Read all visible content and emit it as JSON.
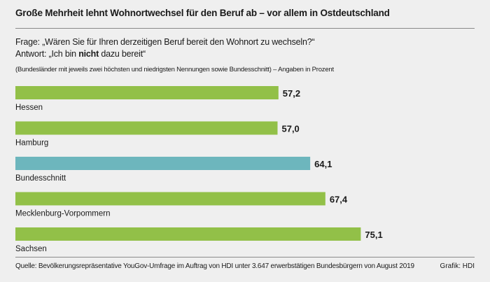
{
  "header": {
    "title": "Große Mehrheit lehnt Wohnortwechsel für den Beruf ab – vor allem in Ostdeutschland",
    "question": "Frage: „Wären Sie für Ihren derzeitigen Beruf bereit den Wohnort zu wechseln?“",
    "answer_prefix": "Antwort: „Ich bin ",
    "answer_emph": "nicht",
    "answer_suffix": " dazu bereit“",
    "note": "(Bundesländer mit jeweils zwei höchsten und niedrigsten Nennungen sowie Bundesschnitt) – Angaben in Prozent"
  },
  "footer": {
    "source": "Quelle: Bevölkerungsrepräsentative YouGov-Umfrage im Auftrag von HDI unter 3.647 erwerbstätigen Bundesbürgern von August 2019",
    "credit": "Grafik: HDI"
  },
  "colors": {
    "green": "#92c048",
    "teal": "#6db6bd"
  },
  "chart_data": {
    "type": "bar",
    "orientation": "horizontal",
    "title": "Große Mehrheit lehnt Wohnortwechsel für den Beruf ab – vor allem in Ostdeutschland",
    "xlabel": "",
    "ylabel": "Angaben in Prozent",
    "xlim": [
      0,
      100
    ],
    "grid": false,
    "categories": [
      "Hessen",
      "Hamburg",
      "Bundesschnitt",
      "Mecklenburg-Vorpommern",
      "Sachsen"
    ],
    "values": [
      57.2,
      57.0,
      64.1,
      67.4,
      75.1
    ],
    "labels": [
      "57,2",
      "57,0",
      "64,1",
      "67,4",
      "75,1"
    ],
    "highlight": [
      "green",
      "green",
      "teal",
      "green",
      "green"
    ]
  }
}
